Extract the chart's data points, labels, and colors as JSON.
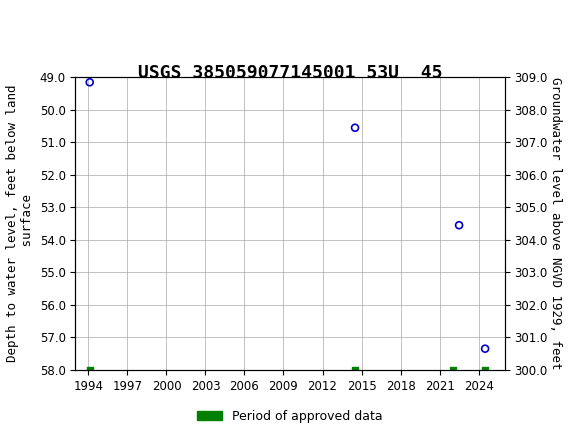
{
  "title": "USGS 385059077145001 53U  45",
  "xlabel": "",
  "ylabel_left": "Depth to water level, feet below land\n surface",
  "ylabel_right": "Groundwater level above NGVD 1929, feet",
  "xlim": [
    1993,
    2026
  ],
  "ylim_left": [
    49.0,
    58.0
  ],
  "ylim_right": [
    300.0,
    309.0
  ],
  "yticks_left": [
    49.0,
    50.0,
    51.0,
    52.0,
    53.0,
    54.0,
    55.0,
    56.0,
    57.0,
    58.0
  ],
  "yticks_right": [
    309.0,
    308.0,
    307.0,
    306.0,
    305.0,
    304.0,
    303.0,
    302.0,
    301.0,
    300.0
  ],
  "xticks": [
    1994,
    1997,
    2000,
    2003,
    2006,
    2009,
    2012,
    2015,
    2018,
    2021,
    2024
  ],
  "data_points": [
    {
      "year": 1994.1,
      "depth": 49.15
    },
    {
      "year": 2014.5,
      "depth": 50.55
    },
    {
      "year": 2022.5,
      "depth": 53.55
    },
    {
      "year": 2024.5,
      "depth": 57.35
    }
  ],
  "period_markers": [
    {
      "year": 1994.1,
      "depth": 58.0
    },
    {
      "year": 2014.5,
      "depth": 58.0
    },
    {
      "year": 2022.0,
      "depth": 58.0
    },
    {
      "year": 2024.5,
      "depth": 58.0
    }
  ],
  "point_color": "#0000CC",
  "point_facecolor": "none",
  "period_color": "#008000",
  "grid_color": "#AAAAAA",
  "bg_color": "#FFFFFF",
  "header_color": "#1a7a3c",
  "legend_label": "Period of approved data",
  "title_fontsize": 13,
  "axis_fontsize": 9,
  "tick_fontsize": 8.5
}
